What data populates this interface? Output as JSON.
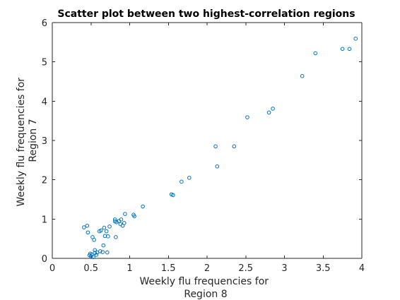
{
  "chart_data": {
    "type": "scatter",
    "title": "Scatter plot between two highest-correlation regions",
    "xlabel": [
      "Weekly flu frequencies for",
      "Region 8"
    ],
    "ylabel": [
      "Weekly flu frequencies for",
      "Region 7"
    ],
    "xlim": [
      0,
      4
    ],
    "ylim": [
      0,
      6
    ],
    "xticks": [
      "0",
      "0.5",
      "1",
      "1.5",
      "2",
      "2.5",
      "3",
      "3.5",
      "4"
    ],
    "yticks": [
      "0",
      "1",
      "2",
      "3",
      "4",
      "5",
      "6"
    ],
    "grid": false,
    "marker_color": "#0072BD",
    "points": [
      [
        0.41,
        0.79
      ],
      [
        0.45,
        0.83
      ],
      [
        0.46,
        0.66
      ],
      [
        0.48,
        0.08
      ],
      [
        0.49,
        0.12
      ],
      [
        0.5,
        0.05
      ],
      [
        0.51,
        0.1
      ],
      [
        0.52,
        0.54
      ],
      [
        0.53,
        0.03
      ],
      [
        0.54,
        0.47
      ],
      [
        0.55,
        0.14
      ],
      [
        0.55,
        0.21
      ],
      [
        0.57,
        0.09
      ],
      [
        0.58,
        0.15
      ],
      [
        0.61,
        0.69
      ],
      [
        0.62,
        0.18
      ],
      [
        0.63,
        0.71
      ],
      [
        0.65,
        0.16
      ],
      [
        0.66,
        0.33
      ],
      [
        0.67,
        0.78
      ],
      [
        0.68,
        0.57
      ],
      [
        0.7,
        0.69
      ],
      [
        0.71,
        0.15
      ],
      [
        0.72,
        0.56
      ],
      [
        0.74,
        0.81
      ],
      [
        0.81,
        0.94
      ],
      [
        0.81,
        0.99
      ],
      [
        0.82,
        0.54
      ],
      [
        0.83,
        0.92
      ],
      [
        0.86,
        0.95
      ],
      [
        0.88,
        0.87
      ],
      [
        0.89,
        0.99
      ],
      [
        0.91,
        0.83
      ],
      [
        0.93,
        0.9
      ],
      [
        0.94,
        1.13
      ],
      [
        1.05,
        1.11
      ],
      [
        1.06,
        1.07
      ],
      [
        1.17,
        1.32
      ],
      [
        1.54,
        1.63
      ],
      [
        1.56,
        1.61
      ],
      [
        1.67,
        1.95
      ],
      [
        1.77,
        2.05
      ],
      [
        2.11,
        2.85
      ],
      [
        2.13,
        2.34
      ],
      [
        2.35,
        2.85
      ],
      [
        2.52,
        3.59
      ],
      [
        2.8,
        3.71
      ],
      [
        2.85,
        3.81
      ],
      [
        3.23,
        4.64
      ],
      [
        3.4,
        5.22
      ],
      [
        3.75,
        5.33
      ],
      [
        3.84,
        5.33
      ],
      [
        3.92,
        5.59
      ]
    ]
  }
}
